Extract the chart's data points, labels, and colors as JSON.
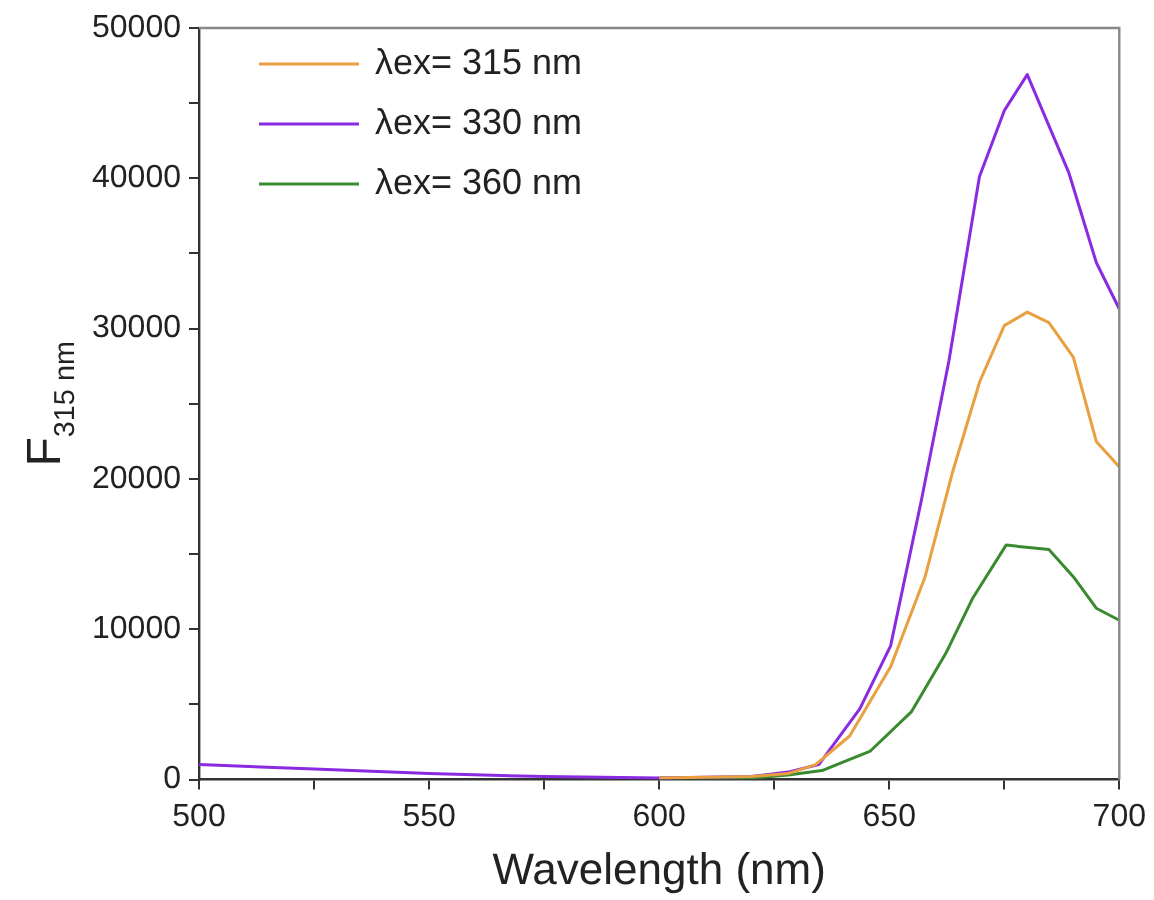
{
  "chart_data": {
    "type": "line",
    "xlabel": "Wavelength (nm)",
    "ylabel": "F$_{315 nm}$",
    "xlim": [
      500,
      700
    ],
    "xticks": [
      500,
      {
        "value": 525,
        "label": null
      },
      550,
      {
        "value": 575,
        "label": null
      },
      600,
      {
        "value": 625,
        "label": null
      },
      650,
      {
        "value": 675,
        "label": null
      },
      700
    ],
    "ylim": [
      0,
      50000
    ],
    "yticks": [
      0,
      {
        "value": 5000,
        "label": null
      },
      10000,
      {
        "value": 15000,
        "label": null
      },
      20000,
      {
        "value": 25000,
        "label": null
      },
      30000,
      {
        "value": 35000,
        "label": null
      },
      40000,
      {
        "value": 45000,
        "label": null
      },
      50000
    ],
    "grid": false,
    "legend": "top left",
    "marker": "none",
    "series": [
      {
        "name": "λex= 315 nm",
        "color": "#e8a040",
        "x": [
          600,
          620,
          628,
          634,
          641.4,
          650.3,
          657.8,
          663.8,
          669.7,
          675,
          680,
          684.7,
          690,
          695,
          700
        ],
        "values": [
          100,
          200,
          400,
          1000,
          2900,
          7500,
          13500,
          20500,
          26500,
          30200,
          31100,
          30400,
          28100,
          22500,
          20800
        ]
      },
      {
        "name": "λex= 330 nm",
        "color": "#8a2be2",
        "x": [
          500,
          525,
          550,
          575,
          600,
          620,
          628,
          634.7,
          643.6,
          650.3,
          657,
          663,
          669.6,
          675,
          680,
          689,
          695,
          700
        ],
        "values": [
          1000,
          700,
          400,
          200,
          100,
          200,
          500,
          1000,
          4700,
          8900,
          18600,
          27900,
          40100,
          44500,
          46900,
          40400,
          34400,
          31300
        ]
      },
      {
        "name": "λex= 360 nm",
        "color": "#3a8a30",
        "x": [
          600,
          620,
          628,
          635.4,
          645.9,
          654.8,
          662.3,
          668.2,
          675.4,
          684.7,
          690,
          695,
          700
        ],
        "values": [
          100,
          100,
          300,
          600,
          1900,
          4500,
          8400,
          12100,
          15600,
          15300,
          13500,
          11400,
          10600
        ]
      }
    ]
  }
}
